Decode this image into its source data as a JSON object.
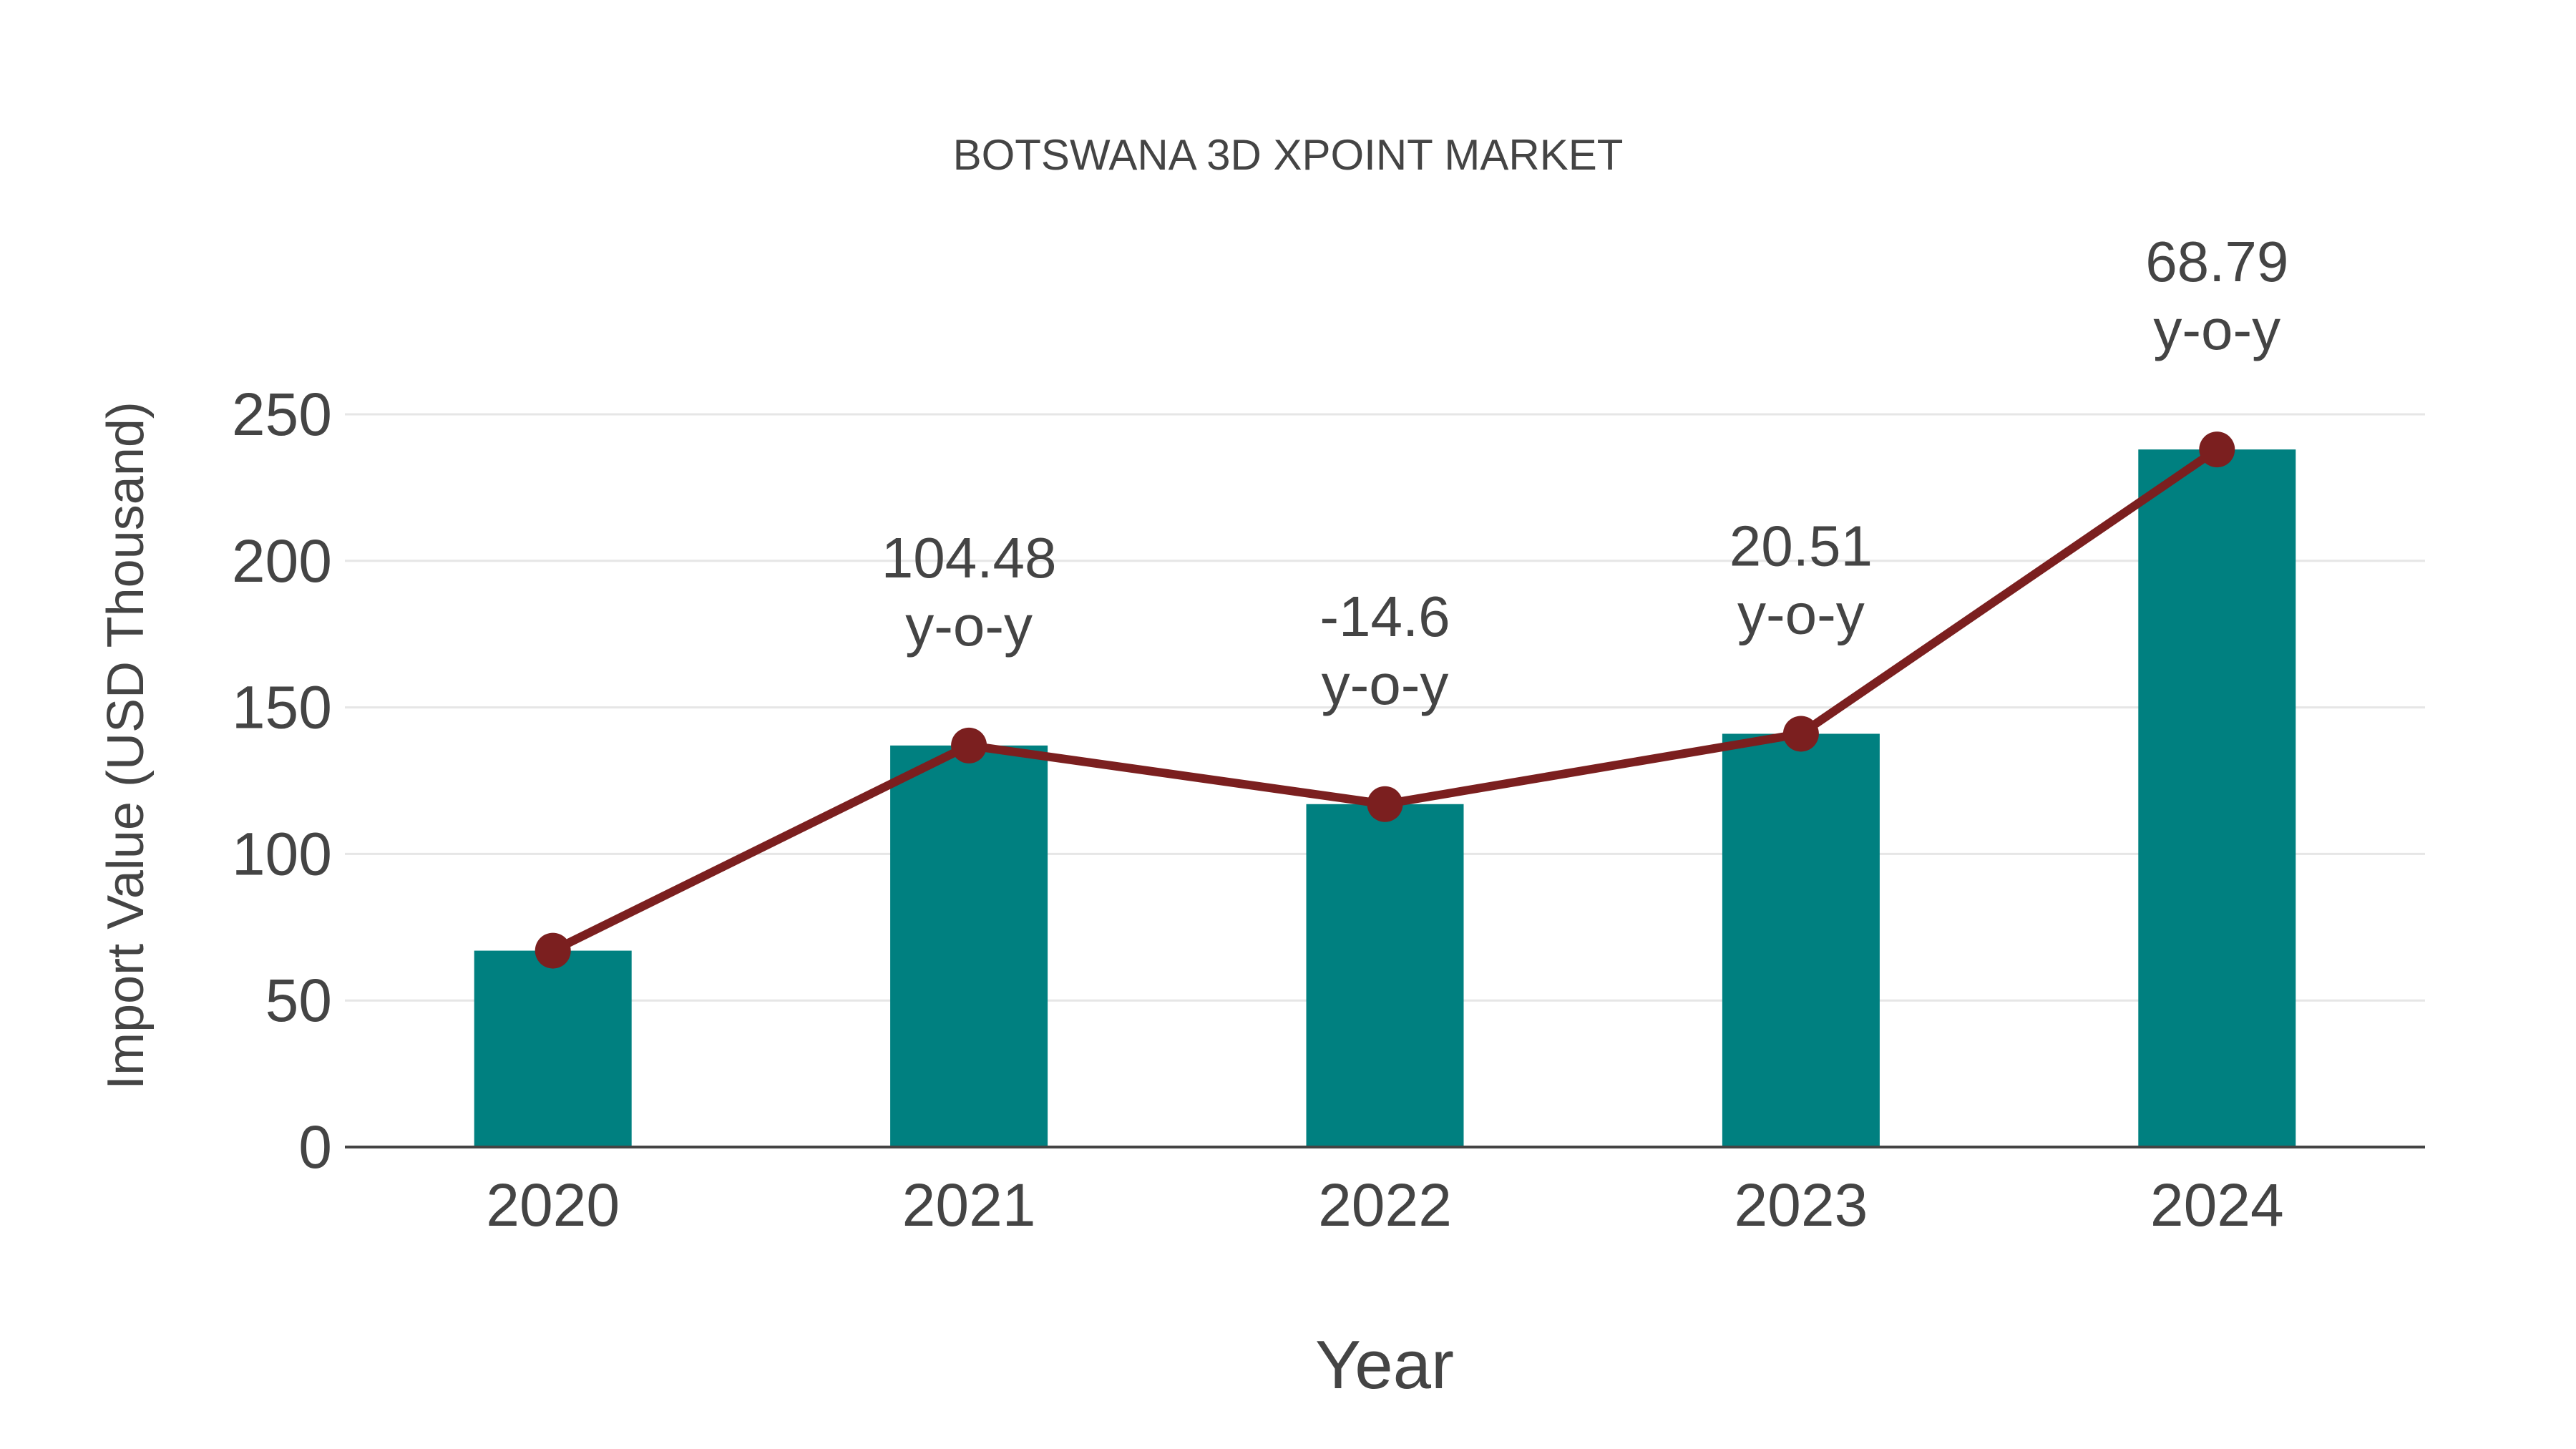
{
  "chart_data": {
    "type": "bar",
    "title": "BOTSWANA 3D XPOINT MARKET",
    "xlabel": "Year",
    "ylabel": "Import Value (USD Thousand)",
    "categories": [
      "2020",
      "2021",
      "2022",
      "2023",
      "2024"
    ],
    "series": [
      {
        "name": "Import Value",
        "type": "bar",
        "color": "#008080",
        "values": [
          67,
          137,
          117,
          141,
          238
        ]
      },
      {
        "name": "Trend",
        "type": "line",
        "color": "#7b1f1f",
        "values": [
          67,
          137,
          117,
          141,
          238
        ]
      }
    ],
    "annotations": [
      {
        "category": "2021",
        "value": "104.48",
        "suffix": "y-o-y"
      },
      {
        "category": "2022",
        "value": "-14.6",
        "suffix": "y-o-y"
      },
      {
        "category": "2023",
        "value": "20.51",
        "suffix": "y-o-y"
      },
      {
        "category": "2024",
        "value": "68.79",
        "suffix": "y-o-y"
      }
    ],
    "yticks": [
      0,
      50,
      100,
      150,
      200,
      250
    ],
    "ylim": [
      0,
      250
    ],
    "grid": true,
    "legend": "none"
  },
  "colors": {
    "bar": "#008080",
    "line": "#7b1f1f",
    "grid": "#e6e6e6",
    "axis": "#444444",
    "text": "#444444"
  }
}
